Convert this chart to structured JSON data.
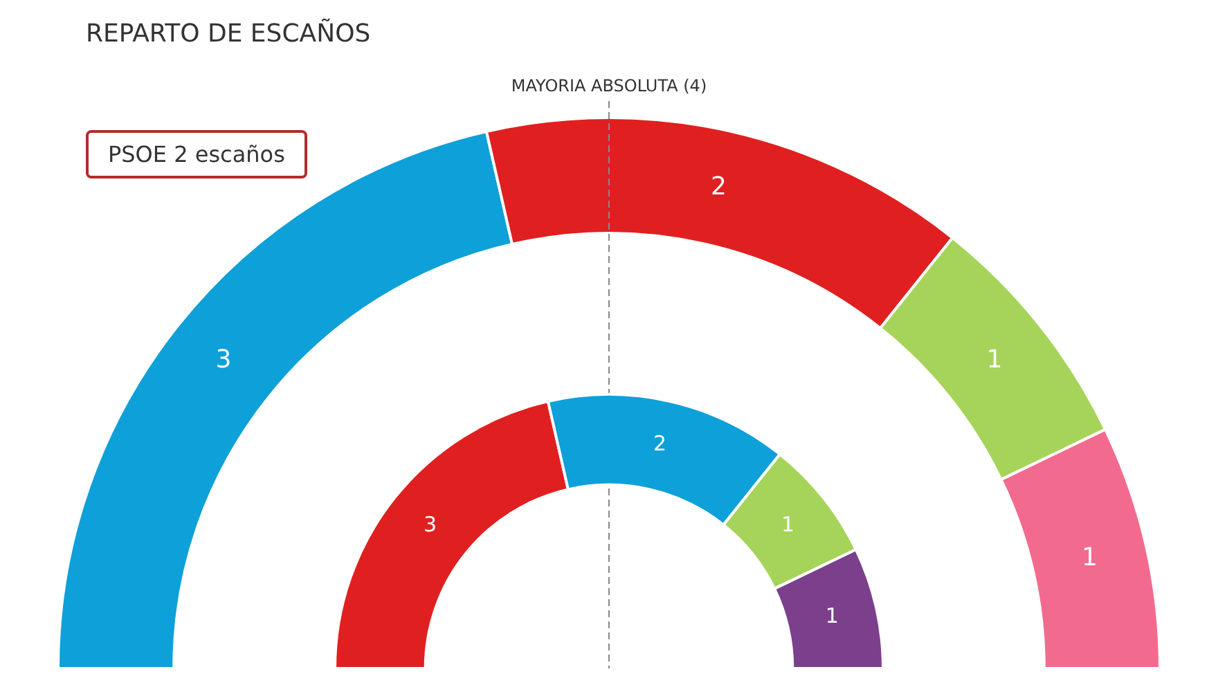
{
  "chart_data": [
    {
      "type": "donut",
      "title": "REPARTO DE ESCAÑOS",
      "categories": [
        null,
        null,
        null,
        null
      ],
      "values": [
        3,
        2,
        1,
        1
      ],
      "colors": [
        "#0ea0d8",
        "#e02020",
        "#a6d45a",
        "#f26b8f"
      ],
      "data_labels": true,
      "legend": false,
      "ref_lines": [
        {
          "axis": "x",
          "label": "MAYORIA ABSOLUTA (4)",
          "line_style": "dashed"
        }
      ],
      "annotations": [
        "PSOE 2 escaños"
      ]
    },
    {
      "type": "donut",
      "categories": [
        null,
        null,
        null,
        null
      ],
      "values": [
        3,
        2,
        1,
        1
      ],
      "colors": [
        "#e02020",
        "#0ea0d8",
        "#a6d45a",
        "#7b3f8c"
      ],
      "data_labels": true,
      "legend": false
    }
  ]
}
